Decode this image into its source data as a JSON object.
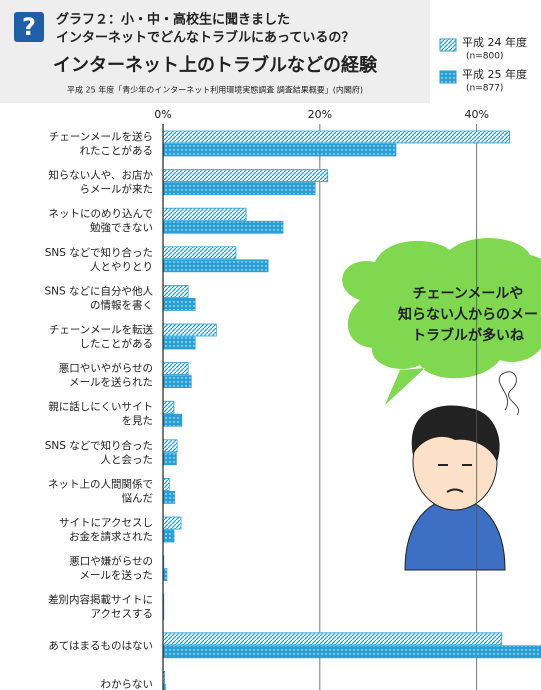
{
  "chart_data": {
    "type": "bar",
    "orientation": "horizontal",
    "header": [
      "グラフ２：小・中・高校生に聞きました",
      "インターネットでどんなトラブルにあっているの？"
    ],
    "title": "インターネット上のトラブルなどの経験",
    "source": "平成 25 年度「青少年のインターネット利用環境実態調査 調査結果概要」(内閣府)",
    "categories": [
      "チェーンメールを送ら\nれたことがある",
      "知らない人や、お店か\nらメールが来た",
      "ネットにのめり込んで\n勉強できない",
      "SNS などで知り合った\n人とやりとり",
      "SNS などに自分や他人\nの情報を書く",
      "チェーンメールを転送\nしたことがある",
      "悪口やいやがらせの\nメールを送られた",
      "親に話しにくいサイト\nを見た",
      "SNS などで知り合った\n人と会った",
      "ネット上の人間関係で\n悩んだ",
      "サイトにアクセスし\nお金を請求された",
      "悪口や嫌がらせの\nメールを送った",
      "差別内容掲載サイトに\nアクセスする",
      "あてはまるものはない",
      "わからない"
    ],
    "series": [
      {
        "name": "平成 24 年度",
        "note": "(n=800)",
        "color": "#2a9fd6",
        "pattern": "hatch",
        "values": [
          44.2,
          21.0,
          10.6,
          9.3,
          3.2,
          6.8,
          3.2,
          1.4,
          1.8,
          0.8,
          2.3,
          0.1,
          0.1,
          43.2,
          0.2
        ]
      },
      {
        "name": "平成 25 年度",
        "note": "(n=877)",
        "color": "#2a9fd6",
        "pattern": "dots",
        "values": [
          29.7,
          19.4,
          15.3,
          13.4,
          4.1,
          4.1,
          3.6,
          2.4,
          1.7,
          1.5,
          1.4,
          0.5,
          0.1,
          49.0,
          0.3
        ]
      }
    ],
    "xlim": [
      0,
      48.2
    ],
    "xticks": [
      {
        "value": 0,
        "label": "0%"
      },
      {
        "value": 20,
        "label": "20%"
      },
      {
        "value": 40,
        "label": "40%"
      }
    ],
    "grid": true,
    "bubble": [
      "チェーンメールや",
      "知らない人からのメー",
      "トラブルが多いね"
    ]
  }
}
